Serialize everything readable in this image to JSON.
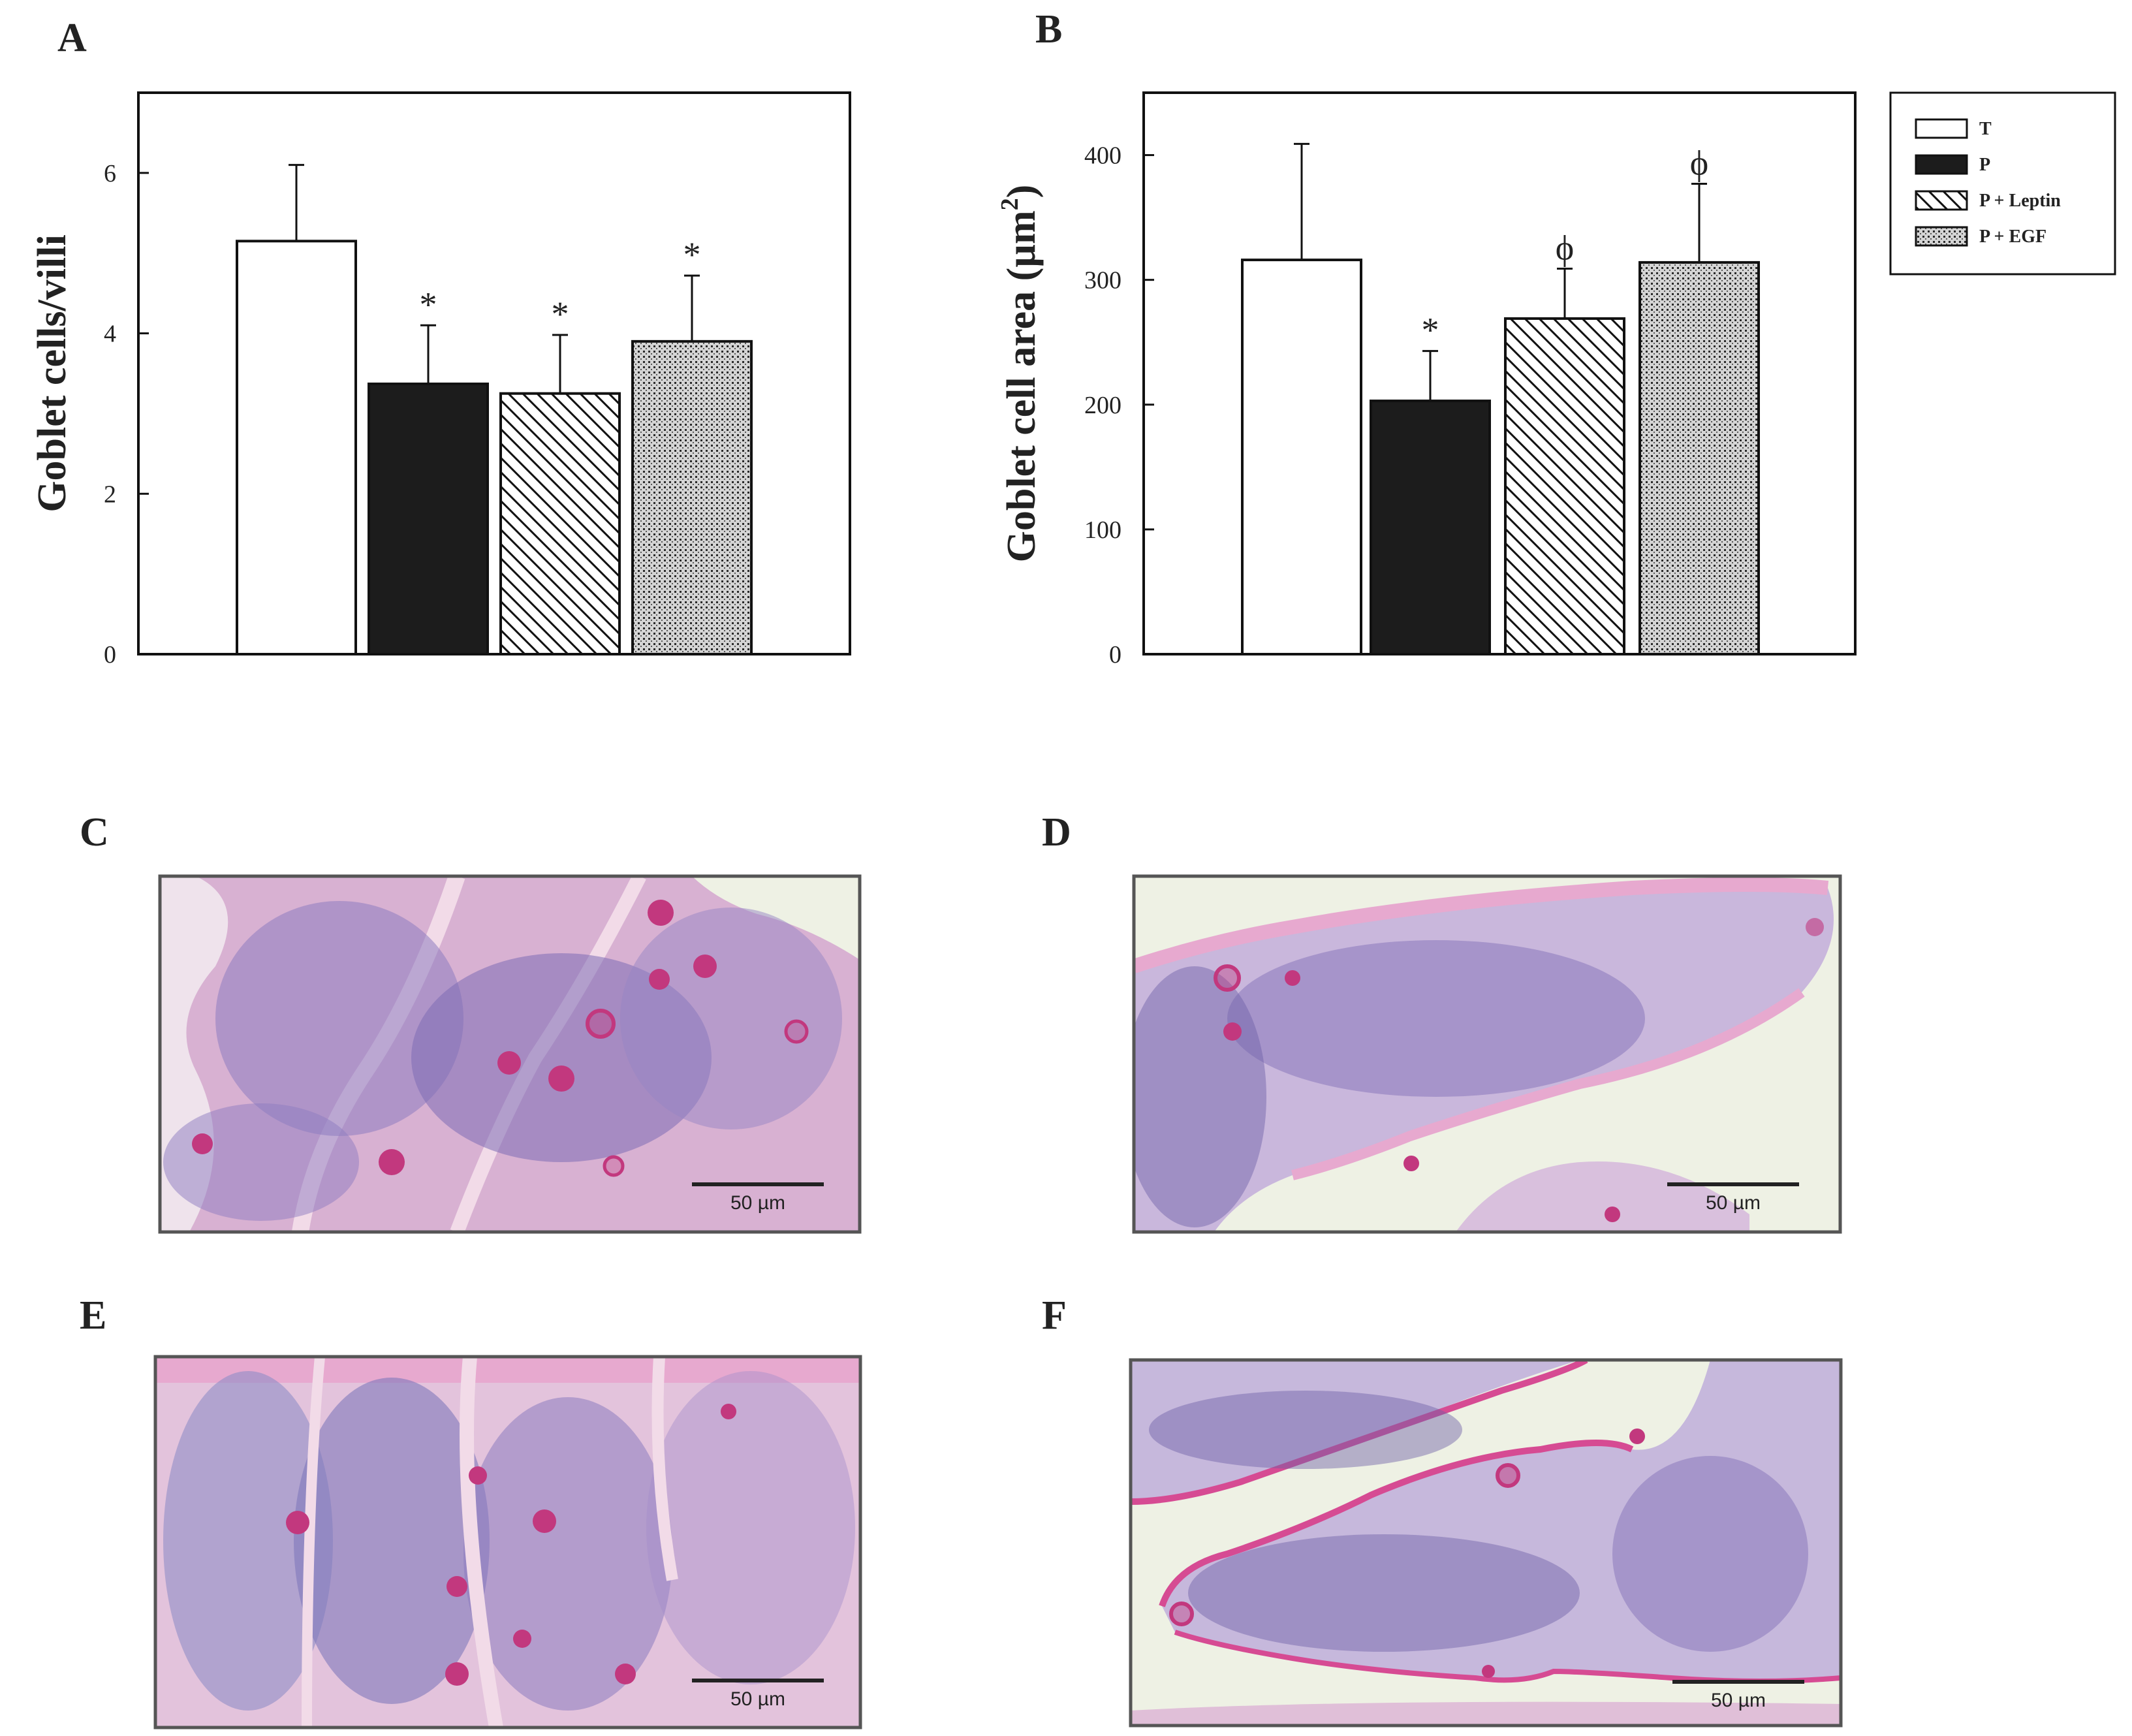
{
  "panels": {
    "A": "A",
    "B": "B",
    "C": "C",
    "D": "D",
    "E": "E",
    "F": "F"
  },
  "colors": {
    "bar_T": "#ffffff",
    "bar_P": "#1c1c1c",
    "tissue_pink": "#e3a8cf",
    "tissue_purple": "#6d5fa6",
    "goblet_magenta": "#c2387e",
    "background_lumen": "#eef1e4"
  },
  "legend": {
    "items": [
      {
        "label": "T",
        "pattern": "white"
      },
      {
        "label": "P",
        "pattern": "black"
      },
      {
        "label": "P + Leptin",
        "pattern": "hatch"
      },
      {
        "label": "P + EGF",
        "pattern": "dots"
      }
    ]
  },
  "chart_data": [
    {
      "panel": "A",
      "type": "bar",
      "categories": [
        "T",
        "P",
        "P + Leptin",
        "P + EGF"
      ],
      "values": [
        5.15,
        3.37,
        3.25,
        3.9
      ],
      "errors": [
        0.95,
        0.73,
        0.73,
        0.82
      ],
      "annotations": [
        "",
        "*",
        "*",
        "*"
      ],
      "title": "",
      "xlabel": "",
      "ylabel": "Goblet cells/villi",
      "ylim": [
        0,
        7
      ],
      "yticks": [
        0,
        2,
        4,
        6
      ],
      "grid": false
    },
    {
      "panel": "B",
      "type": "bar",
      "categories": [
        "T",
        "P",
        "P + Leptin",
        "P + EGF"
      ],
      "values": [
        316,
        203,
        269,
        314
      ],
      "errors": [
        93,
        40,
        40,
        63
      ],
      "annotations": [
        "",
        "*",
        "ϕ",
        "ϕ"
      ],
      "title": "",
      "xlabel": "",
      "ylabel": "Goblet cell area (µm",
      "ylabel_superscript": "2",
      "ylabel_close": ")",
      "ylim": [
        0,
        450
      ],
      "yticks": [
        0,
        100,
        200,
        300,
        400
      ],
      "grid": false,
      "legend_position": "top-right, outside"
    }
  ],
  "micrographs": [
    {
      "panel": "C",
      "scale_label": "50 µm"
    },
    {
      "panel": "D",
      "scale_label": "50 µm"
    },
    {
      "panel": "E",
      "scale_label": "50 µm"
    },
    {
      "panel": "F",
      "scale_label": "50 µm"
    }
  ]
}
